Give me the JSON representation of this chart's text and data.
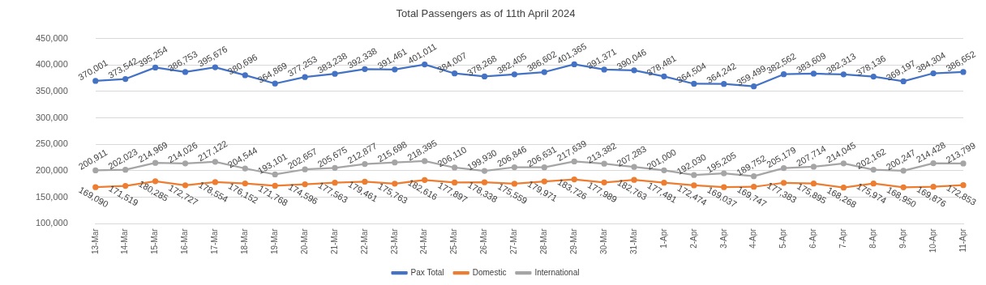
{
  "chart_data": {
    "type": "line",
    "title": "Total Passengers as of 11th April 2024",
    "categories": [
      "13-Mar",
      "14-Mar",
      "15-Mar",
      "16-Mar",
      "17-Mar",
      "18-Mar",
      "19-Mar",
      "20-Mar",
      "21-Mar",
      "22-Mar",
      "23-Mar",
      "24-Mar",
      "25-Mar",
      "26-Mar",
      "27-Mar",
      "28-Mar",
      "29-Mar",
      "30-Mar",
      "31-Mar",
      "1-Apr",
      "2-Apr",
      "3-Apr",
      "4-Apr",
      "5-Apr",
      "6-Apr",
      "7-Apr",
      "8-Apr",
      "9-Apr",
      "10-Apr",
      "11-Apr"
    ],
    "series": [
      {
        "name": "Pax Total",
        "color": "#4472c4",
        "values": [
          370001,
          373542,
          395254,
          386753,
          395676,
          380696,
          364869,
          377253,
          383238,
          392338,
          391461,
          401011,
          384007,
          378268,
          382405,
          386602,
          401365,
          391371,
          390046,
          378481,
          364504,
          364242,
          359499,
          382562,
          383609,
          382313,
          378136,
          369197,
          384304,
          386652
        ],
        "value_labels": [
          "370,001",
          "373,542",
          "395,254",
          "386,753",
          "395,676",
          "380,696",
          "364,869",
          "377,253",
          "383,238",
          "392,338",
          "391,461",
          "401,011",
          "384,007",
          "378,268",
          "382,405",
          "386,602",
          "401,365",
          "391,371",
          "390,046",
          "378,481",
          "364,504",
          "364,242",
          "359,499",
          "382,562",
          "383,609",
          "382,313",
          "378,136",
          "369,197",
          "384,304",
          "386,652"
        ]
      },
      {
        "name": "Domestic",
        "color": "#ed7d31",
        "values": [
          169090,
          171519,
          180285,
          172727,
          178554,
          176152,
          171768,
          174596,
          177563,
          179461,
          175763,
          182616,
          177897,
          178338,
          175559,
          179971,
          183726,
          177989,
          182763,
          177481,
          172474,
          169037,
          169747,
          177383,
          175895,
          168268,
          175974,
          168950,
          169876,
          172853
        ],
        "value_labels": [
          "169,090",
          "171,519",
          "180,285",
          "172,727",
          "178,554",
          "176,152",
          "171,768",
          "174,596",
          "177,563",
          "179,461",
          "175,763",
          "182,616",
          "177,897",
          "178,338",
          "175,559",
          "179,971",
          "183,726",
          "177,989",
          "182,763",
          "177,481",
          "172,474",
          "169,037",
          "169,747",
          "177,383",
          "175,895",
          "168,268",
          "175,974",
          "168,950",
          "169,876",
          "172,853"
        ]
      },
      {
        "name": "International",
        "color": "#a5a5a5",
        "values": [
          200911,
          202023,
          214969,
          214026,
          217122,
          204544,
          193101,
          202657,
          205675,
          212877,
          215698,
          218395,
          206110,
          199930,
          206846,
          206631,
          217639,
          213382,
          207283,
          201000,
          192030,
          195205,
          189752,
          205179,
          207714,
          214045,
          202162,
          200247,
          214428,
          213799
        ],
        "value_labels": [
          "200,911",
          "202,023",
          "214,969",
          "214,026",
          "217,122",
          "204,544",
          "193,101",
          "202,657",
          "205,675",
          "212,877",
          "215,698",
          "218,395",
          "206,110",
          "199,930",
          "206,846",
          "206,631",
          "217,639",
          "213,382",
          "207,283",
          "201,000",
          "192,030",
          "195,205",
          "189,752",
          "205,179",
          "207,714",
          "214,045",
          "202,162",
          "200,247",
          "214,428",
          "213,799"
        ]
      }
    ],
    "ylim": [
      100000,
      450000
    ],
    "yticks": [
      {
        "value": 100000,
        "label": "100,000"
      },
      {
        "value": 150000,
        "label": "150,000"
      },
      {
        "value": 200000,
        "label": "200,000"
      },
      {
        "value": 250000,
        "label": "250,000"
      },
      {
        "value": 300000,
        "label": "300,000"
      },
      {
        "value": 350000,
        "label": "350,000"
      },
      {
        "value": 400000,
        "label": "400,000"
      },
      {
        "value": 450000,
        "label": "450,000"
      }
    ],
    "grid": "y",
    "legend": "bottom",
    "marker": "circle",
    "line_style": "solid"
  }
}
